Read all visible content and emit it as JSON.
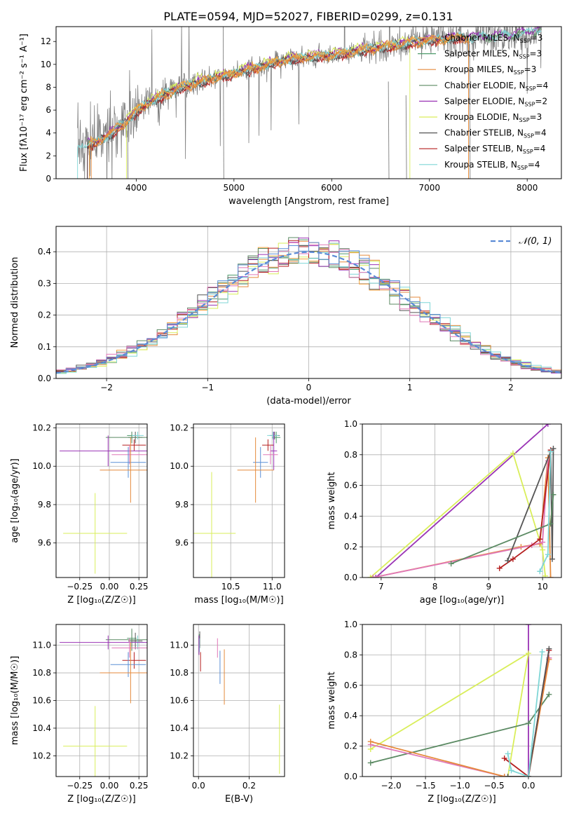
{
  "figure": {
    "title": "PLATE=0594, MJD=52027, FIBERID=0299, z=0.131"
  },
  "colors": {
    "chabrier_miles": "#f6a13a",
    "salpeter_miles": "#4f9b6c",
    "kroupa_miles": "#e58a3b",
    "chabrier_elodie": "#5b8a63",
    "salpeter_elodie": "#9a33b5",
    "kroupa_elodie": "#d9ee5a",
    "chabrier_stelib": "#555555",
    "salpeter_stelib": "#b51f1f",
    "kroupa_stelib": "#7fd6d6",
    "pink": "#e078b8",
    "blue": "#5a8fd6",
    "gray_spectrum": "#7f7f7f",
    "normal_curve": "#5b8bd6"
  },
  "chart_data": [
    {
      "id": "spectrum",
      "type": "line",
      "title": "PLATE=0594, MJD=52027, FIBERID=0299, z=0.131",
      "xlabel": "wavelength [Angstrom, rest frame]",
      "ylabel": "Flux [fλ10⁻¹⁷ erg cm⁻² s⁻¹ A⁻¹]",
      "xlim": [
        3180,
        8350
      ],
      "ylim": [
        0,
        13.3
      ],
      "xticks": [
        "4000",
        "5000",
        "6000",
        "7000",
        "8000"
      ],
      "yticks": [
        "0",
        "2",
        "4",
        "6",
        "8",
        "10",
        "12"
      ],
      "grid": false,
      "legend_position": "top-right",
      "legend": [
        "Chabrier MILES, N",
        "Salpeter MILES, N",
        "Kroupa MILES, N",
        "Chabrier ELODIE, N",
        "Salpeter ELODIE, N",
        "Kroupa ELODIE, N",
        "Chabrier STELIB, N",
        "Salpeter STELIB, N",
        "Kroupa STELIB, N"
      ],
      "legend_sub": "SSP",
      "legend_n": [
        "=3",
        "=3",
        "=3",
        "=4",
        "=2",
        "=3",
        "=4",
        "=4",
        "=4"
      ],
      "legend_colors": [
        "#f6a13a",
        "#4f9b6c",
        "#e58a3b",
        "#5b8a63",
        "#9a33b5",
        "#d9ee5a",
        "#555555",
        "#b51f1f",
        "#7fd6d6"
      ],
      "continuum_knots": {
        "x": [
          3400,
          3600,
          3800,
          3900,
          4000,
          4100,
          4300,
          4500,
          4800,
          5000,
          5300,
          5600,
          6000,
          6300,
          6600,
          6800,
          7000,
          7300,
          7600,
          7800,
          8000,
          8100
        ],
        "y": [
          2.8,
          3.2,
          4.3,
          5.0,
          5.9,
          6.5,
          7.4,
          8.1,
          8.8,
          9.2,
          9.9,
          10.5,
          10.8,
          11.2,
          11.6,
          11.9,
          12.1,
          12.3,
          12.4,
          12.5,
          12.7,
          13.0
        ]
      }
    },
    {
      "id": "residuals",
      "type": "bar",
      "xlabel": "(data-model)/error",
      "ylabel": "Normed distribution",
      "xlim": [
        -2.5,
        2.5
      ],
      "ylim": [
        0,
        0.48
      ],
      "xticks": [
        "−2",
        "−1",
        "0",
        "1",
        "2"
      ],
      "yticks": [
        "0.0",
        "0.1",
        "0.2",
        "0.3",
        "0.4"
      ],
      "grid": true,
      "legend_position": "top-right",
      "legend": [
        "𝒩(0, 1)"
      ],
      "bin_width": 0.1,
      "normal_mean": 0,
      "normal_sigma": 1
    },
    {
      "id": "age_vs_Z",
      "type": "scatter",
      "xlabel": "Z [log₁₀(Z/Z☉)]",
      "ylabel": "age  [log₁₀(age/yr)]",
      "xlim": [
        -0.45,
        0.32
      ],
      "ylim": [
        9.42,
        10.22
      ],
      "xticks": [
        "−0.25",
        "0.00",
        "0.25"
      ],
      "yticks": [
        "9.6",
        "9.8",
        "10.0",
        "10.2"
      ],
      "grid": true,
      "points": [
        {
          "x": 0.19,
          "xerr": 0.04,
          "y": 10.16,
          "yerr": 0.02,
          "c": "#4f9b6c"
        },
        {
          "x": 0.22,
          "xerr": 0.06,
          "y": 10.15,
          "yerr": 0.03,
          "c": "#555555"
        },
        {
          "x": 0.19,
          "xerr": 0.22,
          "y": 10.15,
          "yerr": 0.03,
          "c": "#5b8a63"
        },
        {
          "x": 0.24,
          "xerr": 0.05,
          "y": 10.16,
          "yerr": 0.02,
          "c": "#7fd6d6"
        },
        {
          "x": 0.21,
          "xerr": 0.1,
          "y": 10.11,
          "yerr": 0.03,
          "c": "#b51f1f"
        },
        {
          "x": -0.01,
          "xerr": 0.41,
          "y": 10.08,
          "yerr": 0.08,
          "c": "#9a33b5"
        },
        {
          "x": 0.17,
          "xerr": 0.15,
          "y": 10.06,
          "yerr": 0.05,
          "c": "#e078b8"
        },
        {
          "x": 0.16,
          "xerr": 0.15,
          "y": 10.02,
          "yerr": 0.08,
          "c": "#5a8fd6"
        },
        {
          "x": 0.18,
          "xerr": 0.26,
          "y": 9.98,
          "yerr": 0.17,
          "c": "#e58a3b"
        },
        {
          "x": -0.12,
          "xerr": 0.27,
          "y": 9.65,
          "yerr": 0.21,
          "c": "#d9ee5a"
        }
      ]
    },
    {
      "id": "age_vs_mass",
      "type": "scatter",
      "xlabel": "mass [log₁₀(M/M☉)]",
      "ylabel": "",
      "xlim": [
        10.05,
        11.15
      ],
      "ylim": [
        9.42,
        10.22
      ],
      "xticks": [
        "10.5",
        "11.0"
      ],
      "yticks": [
        "9.6",
        "9.8",
        "10.0",
        "10.2"
      ],
      "grid": true,
      "points": [
        {
          "x": 11.03,
          "xerr": 0.06,
          "y": 10.16,
          "yerr": 0.02,
          "c": "#555555"
        },
        {
          "x": 11.05,
          "xerr": 0.05,
          "y": 10.15,
          "yerr": 0.03,
          "c": "#4f9b6c"
        },
        {
          "x": 11.01,
          "xerr": 0.07,
          "y": 10.16,
          "yerr": 0.02,
          "c": "#7fd6d6"
        },
        {
          "x": 10.95,
          "xerr": 0.07,
          "y": 10.11,
          "yerr": 0.03,
          "c": "#b51f1f"
        },
        {
          "x": 11.02,
          "xerr": 0.04,
          "y": 10.08,
          "yerr": 0.1,
          "c": "#9a33b5"
        },
        {
          "x": 10.98,
          "xerr": 0.09,
          "y": 10.06,
          "yerr": 0.05,
          "c": "#e078b8"
        },
        {
          "x": 10.86,
          "xerr": 0.09,
          "y": 10.02,
          "yerr": 0.08,
          "c": "#5a8fd6"
        },
        {
          "x": 10.8,
          "xerr": 0.22,
          "y": 9.98,
          "yerr": 0.17,
          "c": "#e58a3b"
        },
        {
          "x": 10.27,
          "xerr": 0.29,
          "y": 9.65,
          "yerr": 0.32,
          "c": "#d9ee5a"
        }
      ]
    },
    {
      "id": "weight_vs_age",
      "type": "line",
      "xlabel": "age  [log₁₀(age/yr)]",
      "ylabel": "mass weight",
      "xlim": [
        6.65,
        10.35
      ],
      "ylim": [
        0,
        1
      ],
      "xticks": [
        "7",
        "8",
        "9",
        "10"
      ],
      "yticks": [
        "0.0",
        "0.2",
        "0.4",
        "0.6",
        "0.8",
        "1.0"
      ],
      "grid": true,
      "series": [
        {
          "c": "#9a33b5",
          "x": [
            6.9,
            10.1
          ],
          "y": [
            0.0,
            1.0
          ]
        },
        {
          "c": "#d9ee5a",
          "x": [
            6.8,
            9.45,
            10.0,
            10.05
          ],
          "y": [
            0.0,
            0.81,
            0.18,
            0.01
          ]
        },
        {
          "c": "#e58a3b",
          "x": [
            6.85,
            9.6,
            9.95,
            10.1,
            10.15
          ],
          "y": [
            0.0,
            0.2,
            0.22,
            0.78,
            0.0
          ]
        },
        {
          "c": "#e078b8",
          "x": [
            6.85,
            9.8,
            10.0,
            10.1
          ],
          "y": [
            0.0,
            0.21,
            0.23,
            0.76
          ]
        },
        {
          "c": "#b51f1f",
          "x": [
            9.2,
            9.45,
            9.95,
            10.15
          ],
          "y": [
            0.06,
            0.12,
            0.25,
            0.83
          ]
        },
        {
          "c": "#555555",
          "x": [
            9.35,
            10.15,
            10.18,
            10.2
          ],
          "y": [
            0.11,
            0.82,
            0.12,
            0.84
          ]
        },
        {
          "c": "#5b8a63",
          "x": [
            8.3,
            10.15,
            10.2
          ],
          "y": [
            0.09,
            0.35,
            0.54
          ]
        },
        {
          "c": "#7fd6d6",
          "x": [
            9.95,
            10.1,
            10.15
          ],
          "y": [
            0.04,
            0.15,
            0.82
          ]
        }
      ]
    },
    {
      "id": "mass_vs_Z",
      "type": "scatter",
      "xlabel": "Z [log₁₀(Z/Z☉)]",
      "ylabel": "mass [log₁₀(M/M☉)]",
      "xlim": [
        -0.45,
        0.32
      ],
      "ylim": [
        10.05,
        11.15
      ],
      "xticks": [
        "−0.25",
        "0.00",
        "0.25"
      ],
      "yticks": [
        "10.2",
        "10.4",
        "10.6",
        "10.8",
        "11.0"
      ],
      "grid": true,
      "points": [
        {
          "x": 0.19,
          "xerr": 0.04,
          "y": 11.05,
          "yerr": 0.06,
          "c": "#4f9b6c"
        },
        {
          "x": 0.22,
          "xerr": 0.06,
          "y": 11.03,
          "yerr": 0.06,
          "c": "#555555"
        },
        {
          "x": 0.24,
          "xerr": 0.05,
          "y": 11.02,
          "yerr": 0.05,
          "c": "#7fd6d6"
        },
        {
          "x": 0.19,
          "xerr": 0.22,
          "y": 11.04,
          "yerr": 0.08,
          "c": "#5b8a63"
        },
        {
          "x": -0.01,
          "xerr": 0.41,
          "y": 11.02,
          "yerr": 0.05,
          "c": "#9a33b5"
        },
        {
          "x": 0.17,
          "xerr": 0.15,
          "y": 10.98,
          "yerr": 0.07,
          "c": "#e078b8"
        },
        {
          "x": 0.21,
          "xerr": 0.1,
          "y": 10.89,
          "yerr": 0.06,
          "c": "#b51f1f"
        },
        {
          "x": 0.16,
          "xerr": 0.15,
          "y": 10.86,
          "yerr": 0.09,
          "c": "#5a8fd6"
        },
        {
          "x": 0.18,
          "xerr": 0.26,
          "y": 10.8,
          "yerr": 0.22,
          "c": "#e58a3b"
        },
        {
          "x": -0.12,
          "xerr": 0.27,
          "y": 10.27,
          "yerr": 0.29,
          "c": "#d9ee5a"
        }
      ]
    },
    {
      "id": "mass_vs_ebv",
      "type": "scatter",
      "xlabel": "E(B-V)",
      "ylabel": "",
      "xlim": [
        -0.02,
        0.34
      ],
      "ylim": [
        10.05,
        11.15
      ],
      "xticks": [
        "0.0",
        "0.2"
      ],
      "yticks": [
        "10.2",
        "10.4",
        "10.6",
        "10.8",
        "11.0"
      ],
      "grid": true,
      "points": [
        {
          "x": 0.005,
          "xerr": 0,
          "y": 11.04,
          "yerr": 0.06,
          "c": "#555555"
        },
        {
          "x": 0.003,
          "xerr": 0,
          "y": 11.02,
          "yerr": 0.06,
          "c": "#4f9b6c"
        },
        {
          "x": 0.004,
          "xerr": 0,
          "y": 11.0,
          "yerr": 0.05,
          "c": "#7fd6d6"
        },
        {
          "x": 0.008,
          "xerr": 0,
          "y": 10.88,
          "yerr": 0.07,
          "c": "#b51f1f"
        },
        {
          "x": 0.002,
          "xerr": 0,
          "y": 11.0,
          "yerr": 0.07,
          "c": "#9a33b5"
        },
        {
          "x": 0.075,
          "xerr": 0,
          "y": 10.98,
          "yerr": 0.07,
          "c": "#e078b8"
        },
        {
          "x": 0.085,
          "xerr": 0,
          "y": 10.84,
          "yerr": 0.12,
          "c": "#5a8fd6"
        },
        {
          "x": 0.102,
          "xerr": 0,
          "y": 10.77,
          "yerr": 0.2,
          "c": "#e58a3b"
        },
        {
          "x": 0.32,
          "xerr": 0,
          "y": 10.32,
          "yerr": 0.25,
          "c": "#d9ee5a"
        }
      ]
    },
    {
      "id": "weight_vs_Z",
      "type": "line",
      "xlabel": "Z [log₁₀(Z/Z☉)]",
      "ylabel": "mass weight",
      "xlim": [
        -2.42,
        0.48
      ],
      "ylim": [
        0,
        1
      ],
      "xticks": [
        "−2.0",
        "−1.5",
        "−1.0",
        "−0.5",
        "0.0"
      ],
      "yticks": [
        "0.0",
        "0.2",
        "0.4",
        "0.6",
        "0.8",
        "1.0"
      ],
      "grid": true,
      "series": [
        {
          "c": "#9a33b5",
          "x": [
            0.0,
            0.0
          ],
          "y": [
            0.0,
            1.0
          ]
        },
        {
          "c": "#d9ee5a",
          "x": [
            -2.3,
            0.0,
            -0.3
          ],
          "y": [
            0.18,
            0.81,
            0.0
          ]
        },
        {
          "c": "#5b8a63",
          "x": [
            -2.3,
            0.0,
            0.3
          ],
          "y": [
            0.09,
            0.35,
            0.54
          ]
        },
        {
          "c": "#e078b8",
          "x": [
            -2.3,
            -0.35,
            0.0,
            0.3
          ],
          "y": [
            0.21,
            0.0,
            0.0,
            0.78
          ]
        },
        {
          "c": "#e58a3b",
          "x": [
            -2.3,
            -0.35,
            0.0,
            0.3
          ],
          "y": [
            0.23,
            0.0,
            0.0,
            0.77
          ]
        },
        {
          "c": "#b51f1f",
          "x": [
            -0.35,
            0.0,
            0.3
          ],
          "y": [
            0.12,
            0.0,
            0.83
          ]
        },
        {
          "c": "#555555",
          "x": [
            -0.3,
            0.0,
            0.3
          ],
          "y": [
            0.0,
            0.0,
            0.84
          ]
        },
        {
          "c": "#7fd6d6",
          "x": [
            -0.3,
            -0.25,
            0.0,
            0.2
          ],
          "y": [
            0.15,
            0.04,
            0.0,
            0.82
          ]
        }
      ]
    }
  ]
}
